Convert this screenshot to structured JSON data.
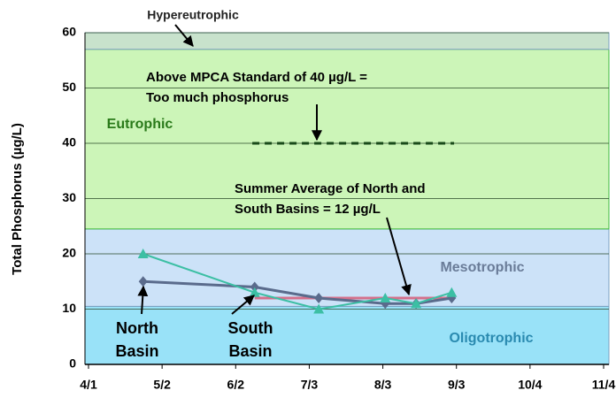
{
  "chart_data": {
    "type": "line",
    "y_label": "Total Phosphorus (µg/L)",
    "xlim": [
      91,
      308
    ],
    "xticks": [
      {
        "value": 91,
        "label": "4/1"
      },
      {
        "value": 122,
        "label": "5/2"
      },
      {
        "value": 153,
        "label": "6/2"
      },
      {
        "value": 184,
        "label": "7/3"
      },
      {
        "value": 215,
        "label": "8/3"
      },
      {
        "value": 246,
        "label": "9/3"
      },
      {
        "value": 277,
        "label": "10/4"
      },
      {
        "value": 308,
        "label": "11/4"
      }
    ],
    "ylim": [
      0,
      60
    ],
    "yticks": [
      0,
      10,
      20,
      30,
      40,
      50,
      60
    ],
    "grid": true,
    "x": [
      114,
      161,
      188,
      216,
      229,
      244
    ],
    "series": [
      {
        "name": "North Basin",
        "color": "#5a6b8c",
        "marker": "diamond",
        "values": [
          15,
          14,
          12,
          11,
          11,
          12
        ]
      },
      {
        "name": "South Basin",
        "color": "#3cbfa4",
        "marker": "triangle",
        "values": [
          20,
          13,
          10,
          12,
          11,
          13
        ]
      }
    ],
    "bands": [
      {
        "name": "Oligotrophic",
        "from": 0,
        "to": 10.5,
        "color": "#99e2f8",
        "text_color": "#2a8ab0"
      },
      {
        "name": "Mesotrophic",
        "from": 10.5,
        "to": 24.5,
        "color": "#cce2f8",
        "text_color": "#6a7c98"
      },
      {
        "name": "Eutrophic",
        "from": 24.5,
        "to": 57,
        "color": "#ccf5b8",
        "text_color": "#2a7a1a"
      },
      {
        "name": "Hypereutrophic",
        "from": 57,
        "to": 60,
        "color": "#c8e2cc",
        "text_color": "#222222"
      }
    ],
    "reference_lines": [
      {
        "lines": [
          "Above MPCA Standard of 40 µg/L =",
          "Too much phosphorus"
        ],
        "value": 40,
        "x": [
          160,
          245
        ],
        "color": "#1a4a1a",
        "dashed": true
      },
      {
        "lines": [
          "Summer Average of North and",
          "South Basins = 12 µg/L"
        ],
        "value": 12,
        "x": [
          161,
          244
        ],
        "color": "#d4708c",
        "dashed": false
      }
    ]
  }
}
